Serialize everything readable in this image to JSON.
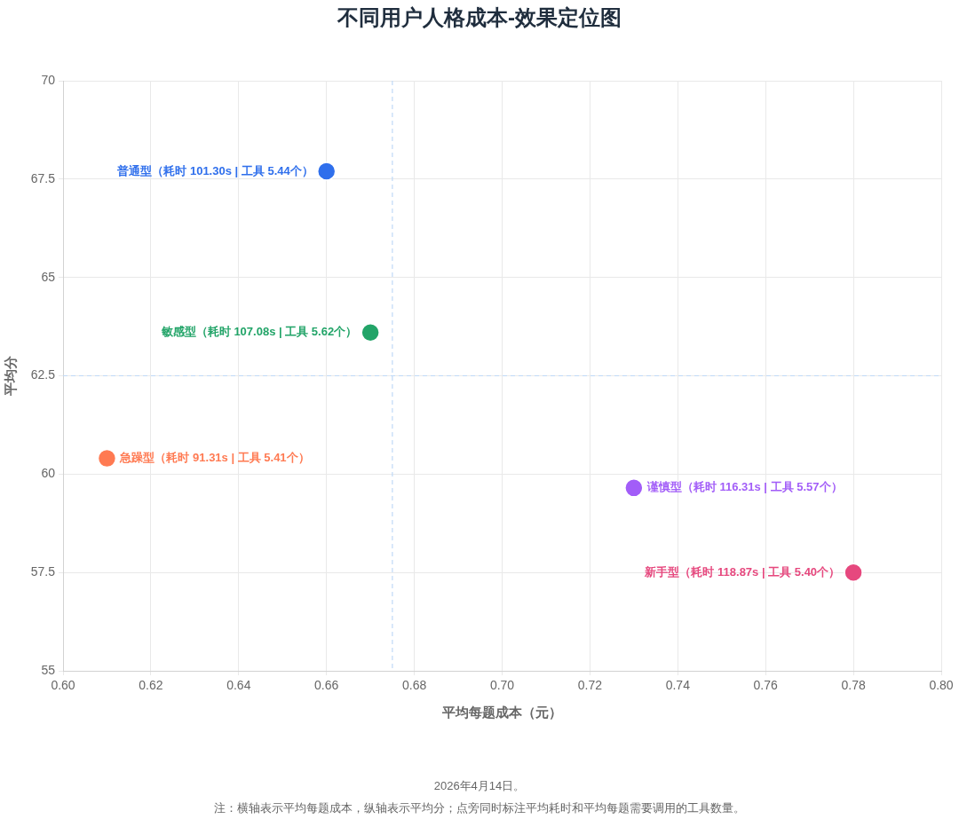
{
  "chart_data": {
    "type": "scatter",
    "title": "不同用户人格成本-效果定位图",
    "xlabel": "平均每题成本（元）",
    "ylabel": "平均分",
    "xlim": [
      0.6,
      0.8
    ],
    "xticks": [
      {
        "value": 0.6,
        "label": "0.60"
      },
      {
        "value": 0.62,
        "label": "0.62"
      },
      {
        "value": 0.64,
        "label": "0.64"
      },
      {
        "value": 0.66,
        "label": "0.66"
      },
      {
        "value": 0.68,
        "label": "0.68"
      },
      {
        "value": 0.7,
        "label": "0.70"
      },
      {
        "value": 0.72,
        "label": "0.72"
      },
      {
        "value": 0.74,
        "label": "0.74"
      },
      {
        "value": 0.76,
        "label": "0.76"
      },
      {
        "value": 0.78,
        "label": "0.78"
      },
      {
        "value": 0.8,
        "label": "0.80"
      }
    ],
    "ylim": [
      55,
      70
    ],
    "yticks": [
      55,
      57.5,
      60,
      62.5,
      65,
      67.5,
      70
    ],
    "grid": true,
    "legend": false,
    "marker": "circle",
    "ref_lines": [
      {
        "axis": "x",
        "value": 0.675,
        "color": "#bfd9f7",
        "line_style": "dashed"
      },
      {
        "axis": "y",
        "value": 62.5,
        "color": "#bfd9f7",
        "line_style": "dashed"
      }
    ],
    "series": [
      {
        "color": "#2f6fec",
        "x": [
          0.66
        ],
        "values": [
          67.7
        ],
        "value_labels": [
          "普通型（耗时 101.30s | 工具 5.44个）"
        ]
      },
      {
        "color": "#22a468",
        "x": [
          0.67
        ],
        "values": [
          63.6
        ],
        "value_labels": [
          "敏感型（耗时 107.08s | 工具 5.62个）"
        ]
      },
      {
        "color": "#ff7a52",
        "x": [
          0.61
        ],
        "values": [
          60.4
        ],
        "value_labels": [
          "急躁型（耗时 91.31s | 工具 5.41个）"
        ]
      },
      {
        "color": "#a25df8",
        "x": [
          0.73
        ],
        "values": [
          59.65
        ],
        "value_labels": [
          "谨慎型（耗时 116.31s | 工具 5.57个）"
        ]
      },
      {
        "color": "#e6487e",
        "x": [
          0.78
        ],
        "values": [
          57.5
        ],
        "value_labels": [
          "新手型（耗时 118.87s | 工具 5.40个）"
        ]
      }
    ],
    "annotations": [
      "2026年4月14日。",
      "注：横轴表示平均每题成本，纵轴表示平均分；点旁同时标注平均耗时和平均每题需要调用的工具数量。"
    ]
  }
}
